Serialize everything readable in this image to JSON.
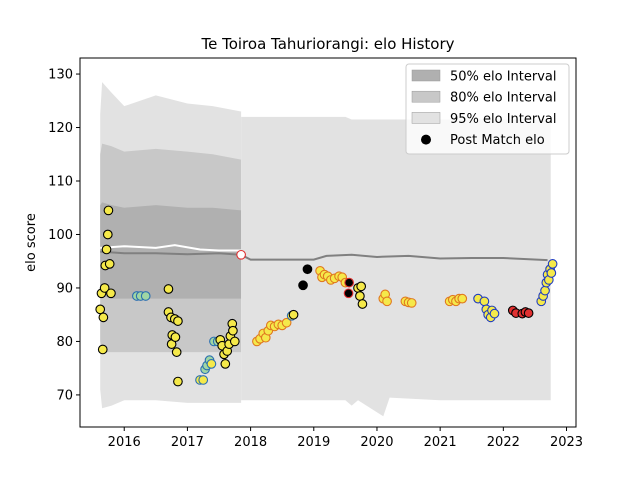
{
  "chart_data": {
    "type": "line",
    "title": "Te Toiroa Tahuriorangi: elo History",
    "ylabel": "elo score",
    "xlabel": "",
    "xlim": [
      2015.3,
      2023.15
    ],
    "ylim": [
      64,
      133
    ],
    "xticks": [
      2016,
      2017,
      2018,
      2019,
      2020,
      2021,
      2022,
      2023
    ],
    "yticks": [
      70,
      80,
      90,
      100,
      110,
      120,
      130
    ],
    "grid": false,
    "legend_position": "top-right",
    "legend": [
      {
        "label": "50% elo Interval",
        "kind": "band",
        "color": "#b0b0b0"
      },
      {
        "label": "80% elo Interval",
        "kind": "band",
        "color": "#c8c8c8"
      },
      {
        "label": "95% elo Interval",
        "kind": "band",
        "color": "#e2e2e2"
      },
      {
        "label": "Post Match elo",
        "kind": "marker",
        "color": "#000000"
      }
    ],
    "colors": {
      "band50": "#b0b0b0",
      "band80": "#c8c8c8",
      "band95": "#e2e2e2",
      "mean_line": "#808080",
      "early_line": "#ffffff"
    },
    "series": [
      {
        "name": "95% elo Interval",
        "kind": "band",
        "x": [
          2015.62,
          2015.65,
          2015.8,
          2016.0,
          2016.5,
          2017.0,
          2017.4,
          2017.85
        ],
        "upper": [
          122.5,
          128.5,
          126.5,
          124,
          126,
          124.5,
          124,
          123
        ],
        "lower": [
          71,
          67.5,
          68,
          69,
          69,
          68.5,
          68.5,
          68.5
        ]
      },
      {
        "name": "80% elo Interval",
        "kind": "band",
        "x": [
          2015.62,
          2015.65,
          2015.8,
          2016.0,
          2016.5,
          2017.0,
          2017.4,
          2017.85
        ],
        "upper": [
          115,
          117,
          116.5,
          115.5,
          116,
          115.5,
          115,
          114
        ],
        "lower": [
          80,
          78,
          78,
          78,
          78,
          78,
          78,
          78
        ]
      },
      {
        "name": "50% elo Interval",
        "kind": "band",
        "x": [
          2015.62,
          2015.65,
          2015.8,
          2016.0,
          2016.5,
          2017.0,
          2017.4,
          2017.85
        ],
        "upper": [
          105.5,
          106,
          105.5,
          105,
          105.5,
          105,
          105,
          104.5
        ],
        "lower": [
          88.5,
          88.5,
          88,
          88,
          88,
          88,
          88,
          88
        ]
      },
      {
        "name": "95% elo Interval",
        "kind": "band",
        "x": [
          2017.85,
          2018.0,
          2019.0,
          2019.5,
          2019.6,
          2019.7,
          2020.1,
          2020.2,
          2021.0,
          2022.0,
          2022.75
        ],
        "upper": [
          122,
          122,
          122,
          122,
          121.5,
          121.5,
          121.5,
          121.5,
          121.5,
          121.5,
          121.5
        ],
        "lower": [
          69,
          69,
          69,
          69,
          68,
          69,
          66,
          69.5,
          69,
          69,
          69
        ]
      },
      {
        "name": "mean",
        "kind": "line",
        "color": "#808080",
        "x": [
          2015.62,
          2016.0,
          2016.5,
          2017.0,
          2017.5,
          2017.85,
          2018.0,
          2018.5,
          2019.0,
          2019.2,
          2019.6,
          2020.0,
          2020.5,
          2021.0,
          2021.5,
          2022.0,
          2022.7
        ],
        "y": [
          96.8,
          96.5,
          96.5,
          96.3,
          96.5,
          96.2,
          95.3,
          95.3,
          95.3,
          96,
          96.2,
          95.8,
          96.0,
          95.5,
          95.6,
          95.6,
          95.2
        ]
      },
      {
        "name": "early mean",
        "kind": "line",
        "color": "#ffffff",
        "x": [
          2015.62,
          2016.0,
          2016.5,
          2016.8,
          2017.2,
          2017.5,
          2017.85
        ],
        "y": [
          97.5,
          97.8,
          97.5,
          98.0,
          97.2,
          97.0,
          97.0
        ]
      }
    ],
    "points": [
      {
        "x": 2015.62,
        "y": 86.0,
        "fill": "#f5e94a",
        "edge": "#000000"
      },
      {
        "x": 2015.64,
        "y": 89.0,
        "fill": "#f5e94a",
        "edge": "#000000"
      },
      {
        "x": 2015.66,
        "y": 78.5,
        "fill": "#f5e94a",
        "edge": "#000000"
      },
      {
        "x": 2015.67,
        "y": 84.5,
        "fill": "#f5e94a",
        "edge": "#000000"
      },
      {
        "x": 2015.69,
        "y": 90.0,
        "fill": "#f5e94a",
        "edge": "#000000"
      },
      {
        "x": 2015.7,
        "y": 94.2,
        "fill": "#f5e94a",
        "edge": "#000000"
      },
      {
        "x": 2015.72,
        "y": 97.2,
        "fill": "#f5e94a",
        "edge": "#000000"
      },
      {
        "x": 2015.74,
        "y": 100.0,
        "fill": "#f5e94a",
        "edge": "#000000"
      },
      {
        "x": 2015.75,
        "y": 104.5,
        "fill": "#f5e94a",
        "edge": "#000000"
      },
      {
        "x": 2015.77,
        "y": 94.5,
        "fill": "#f5e94a",
        "edge": "#000000"
      },
      {
        "x": 2015.79,
        "y": 89.0,
        "fill": "#f5e94a",
        "edge": "#000000"
      },
      {
        "x": 2016.2,
        "y": 88.5,
        "fill": "#a0d6a4",
        "edge": "#2a6fb0"
      },
      {
        "x": 2016.26,
        "y": 88.5,
        "fill": "#a0d6a4",
        "edge": "#2a6fb0"
      },
      {
        "x": 2016.34,
        "y": 88.5,
        "fill": "#a0d6a4",
        "edge": "#2a6fb0"
      },
      {
        "x": 2016.7,
        "y": 89.8,
        "fill": "#f5e94a",
        "edge": "#000000"
      },
      {
        "x": 2016.7,
        "y": 85.5,
        "fill": "#f5e94a",
        "edge": "#000000"
      },
      {
        "x": 2016.74,
        "y": 84.5,
        "fill": "#f5e94a",
        "edge": "#000000"
      },
      {
        "x": 2016.75,
        "y": 79.5,
        "fill": "#f5e94a",
        "edge": "#000000"
      },
      {
        "x": 2016.76,
        "y": 81.2,
        "fill": "#f5e94a",
        "edge": "#000000"
      },
      {
        "x": 2016.8,
        "y": 84.2,
        "fill": "#f5e94a",
        "edge": "#000000"
      },
      {
        "x": 2016.81,
        "y": 80.8,
        "fill": "#f5e94a",
        "edge": "#000000"
      },
      {
        "x": 2016.83,
        "y": 78.0,
        "fill": "#f5e94a",
        "edge": "#000000"
      },
      {
        "x": 2016.85,
        "y": 83.8,
        "fill": "#f5e94a",
        "edge": "#000000"
      },
      {
        "x": 2016.85,
        "y": 72.5,
        "fill": "#f5e94a",
        "edge": "#000000"
      },
      {
        "x": 2017.2,
        "y": 72.8,
        "fill": "#f5e94a",
        "edge": "#2a6fb0"
      },
      {
        "x": 2017.25,
        "y": 72.8,
        "fill": "#f5e94a",
        "edge": "#2a6fb0"
      },
      {
        "x": 2017.28,
        "y": 74.8,
        "fill": "#a0d6a4",
        "edge": "#2a6fb0"
      },
      {
        "x": 2017.31,
        "y": 75.5,
        "fill": "#a0d6a4",
        "edge": "#2a6fb0"
      },
      {
        "x": 2017.35,
        "y": 76.5,
        "fill": "#a0d6a4",
        "edge": "#2a6fb0"
      },
      {
        "x": 2017.38,
        "y": 75.8,
        "fill": "#f5e94a",
        "edge": "#2a6fb0"
      },
      {
        "x": 2017.42,
        "y": 80.0,
        "fill": "#a0d6a4",
        "edge": "#2a6fb0"
      },
      {
        "x": 2017.48,
        "y": 80.0,
        "fill": "#a0d6a4",
        "edge": "#2a6fb0"
      },
      {
        "x": 2017.52,
        "y": 80.3,
        "fill": "#f5e94a",
        "edge": "#000000"
      },
      {
        "x": 2017.55,
        "y": 79.2,
        "fill": "#f5e94a",
        "edge": "#000000"
      },
      {
        "x": 2017.58,
        "y": 77.6,
        "fill": "#f5e94a",
        "edge": "#000000"
      },
      {
        "x": 2017.6,
        "y": 75.8,
        "fill": "#f5e94a",
        "edge": "#000000"
      },
      {
        "x": 2017.63,
        "y": 78.2,
        "fill": "#f5e94a",
        "edge": "#000000"
      },
      {
        "x": 2017.66,
        "y": 79.5,
        "fill": "#f5e94a",
        "edge": "#000000"
      },
      {
        "x": 2017.68,
        "y": 81.0,
        "fill": "#f5e94a",
        "edge": "#000000"
      },
      {
        "x": 2017.71,
        "y": 83.3,
        "fill": "#f5e94a",
        "edge": "#000000"
      },
      {
        "x": 2017.72,
        "y": 82.0,
        "fill": "#f5e94a",
        "edge": "#000000"
      },
      {
        "x": 2017.75,
        "y": 80.0,
        "fill": "#f5e94a",
        "edge": "#000000"
      },
      {
        "x": 2017.85,
        "y": 96.2,
        "fill": "#ffffff",
        "edge": "#e03030"
      },
      {
        "x": 2018.1,
        "y": 80.0,
        "fill": "#f5e94a",
        "edge": "#e07820"
      },
      {
        "x": 2018.15,
        "y": 80.5,
        "fill": "#f5e94a",
        "edge": "#e07820"
      },
      {
        "x": 2018.2,
        "y": 81.5,
        "fill": "#f5e94a",
        "edge": "#e07820"
      },
      {
        "x": 2018.24,
        "y": 80.7,
        "fill": "#f5e94a",
        "edge": "#e07820"
      },
      {
        "x": 2018.28,
        "y": 82.0,
        "fill": "#f5e94a",
        "edge": "#e07820"
      },
      {
        "x": 2018.32,
        "y": 83.0,
        "fill": "#f5e94a",
        "edge": "#e07820"
      },
      {
        "x": 2018.38,
        "y": 82.8,
        "fill": "#f5e94a",
        "edge": "#e07820"
      },
      {
        "x": 2018.44,
        "y": 83.2,
        "fill": "#f5e94a",
        "edge": "#e07820"
      },
      {
        "x": 2018.5,
        "y": 83.0,
        "fill": "#f5e94a",
        "edge": "#e07820"
      },
      {
        "x": 2018.57,
        "y": 83.5,
        "fill": "#f5e94a",
        "edge": "#e07820"
      },
      {
        "x": 2018.65,
        "y": 84.8,
        "fill": "#f5e94a",
        "edge": "#2a6fb0"
      },
      {
        "x": 2018.68,
        "y": 85.0,
        "fill": "#f5e94a",
        "edge": "#000000"
      },
      {
        "x": 2018.83,
        "y": 90.5,
        "fill": "#000000",
        "edge": "#000000"
      },
      {
        "x": 2018.9,
        "y": 93.5,
        "fill": "#000000",
        "edge": "#000000"
      },
      {
        "x": 2019.1,
        "y": 93.2,
        "fill": "#f5e94a",
        "edge": "#e07820"
      },
      {
        "x": 2019.13,
        "y": 92.0,
        "fill": "#f5e94a",
        "edge": "#e07820"
      },
      {
        "x": 2019.17,
        "y": 92.5,
        "fill": "#f5e94a",
        "edge": "#e07820"
      },
      {
        "x": 2019.22,
        "y": 92.2,
        "fill": "#f5e94a",
        "edge": "#e07820"
      },
      {
        "x": 2019.27,
        "y": 91.5,
        "fill": "#f5e94a",
        "edge": "#e07820"
      },
      {
        "x": 2019.33,
        "y": 91.8,
        "fill": "#f5e94a",
        "edge": "#e07820"
      },
      {
        "x": 2019.4,
        "y": 92.2,
        "fill": "#f5e94a",
        "edge": "#e07820"
      },
      {
        "x": 2019.45,
        "y": 92.0,
        "fill": "#f5e94a",
        "edge": "#e07820"
      },
      {
        "x": 2019.5,
        "y": 91.0,
        "fill": "#f5e94a",
        "edge": "#e07820"
      },
      {
        "x": 2019.55,
        "y": 89.0,
        "fill": "#000000",
        "edge": "#e03030"
      },
      {
        "x": 2019.56,
        "y": 91.0,
        "fill": "#000000",
        "edge": "#e03030"
      },
      {
        "x": 2019.7,
        "y": 90.0,
        "fill": "#f5e94a",
        "edge": "#000000"
      },
      {
        "x": 2019.73,
        "y": 88.5,
        "fill": "#f5e94a",
        "edge": "#000000"
      },
      {
        "x": 2019.75,
        "y": 90.3,
        "fill": "#f5e94a",
        "edge": "#000000"
      },
      {
        "x": 2019.77,
        "y": 87.0,
        "fill": "#f5e94a",
        "edge": "#000000"
      },
      {
        "x": 2020.1,
        "y": 88.0,
        "fill": "#f5e94a",
        "edge": "#e07820"
      },
      {
        "x": 2020.13,
        "y": 88.8,
        "fill": "#f5e94a",
        "edge": "#e07820"
      },
      {
        "x": 2020.16,
        "y": 87.5,
        "fill": "#f5e94a",
        "edge": "#e07820"
      },
      {
        "x": 2020.45,
        "y": 87.5,
        "fill": "#f5e94a",
        "edge": "#e07820"
      },
      {
        "x": 2020.5,
        "y": 87.3,
        "fill": "#f5e94a",
        "edge": "#e07820"
      },
      {
        "x": 2020.55,
        "y": 87.2,
        "fill": "#f5e94a",
        "edge": "#e07820"
      },
      {
        "x": 2021.15,
        "y": 87.5,
        "fill": "#f5e94a",
        "edge": "#e07820"
      },
      {
        "x": 2021.2,
        "y": 87.8,
        "fill": "#f5e94a",
        "edge": "#e07820"
      },
      {
        "x": 2021.25,
        "y": 87.5,
        "fill": "#f5e94a",
        "edge": "#e07820"
      },
      {
        "x": 2021.3,
        "y": 88.0,
        "fill": "#f5e94a",
        "edge": "#e07820"
      },
      {
        "x": 2021.35,
        "y": 88.0,
        "fill": "#f5e94a",
        "edge": "#e07820"
      },
      {
        "x": 2021.6,
        "y": 88.0,
        "fill": "#f5e94a",
        "edge": "#1f3cc0"
      },
      {
        "x": 2021.7,
        "y": 87.5,
        "fill": "#f5e94a",
        "edge": "#1f3cc0"
      },
      {
        "x": 2021.73,
        "y": 86.0,
        "fill": "#f5e94a",
        "edge": "#1f3cc0"
      },
      {
        "x": 2021.76,
        "y": 85.0,
        "fill": "#f5e94a",
        "edge": "#1f3cc0"
      },
      {
        "x": 2021.8,
        "y": 84.5,
        "fill": "#f5e94a",
        "edge": "#1f3cc0"
      },
      {
        "x": 2021.82,
        "y": 85.8,
        "fill": "#f5e94a",
        "edge": "#1f3cc0"
      },
      {
        "x": 2021.86,
        "y": 85.2,
        "fill": "#f5e94a",
        "edge": "#1f3cc0"
      },
      {
        "x": 2022.15,
        "y": 85.8,
        "fill": "#e03030",
        "edge": "#000000"
      },
      {
        "x": 2022.2,
        "y": 85.3,
        "fill": "#e03030",
        "edge": "#000000"
      },
      {
        "x": 2022.3,
        "y": 85.2,
        "fill": "#e03030",
        "edge": "#000000"
      },
      {
        "x": 2022.35,
        "y": 85.5,
        "fill": "#e03030",
        "edge": "#000000"
      },
      {
        "x": 2022.4,
        "y": 85.3,
        "fill": "#e03030",
        "edge": "#000000"
      },
      {
        "x": 2022.6,
        "y": 87.5,
        "fill": "#f5e94a",
        "edge": "#1f3cc0"
      },
      {
        "x": 2022.63,
        "y": 88.5,
        "fill": "#f5e94a",
        "edge": "#1f3cc0"
      },
      {
        "x": 2022.66,
        "y": 89.5,
        "fill": "#f5e94a",
        "edge": "#1f3cc0"
      },
      {
        "x": 2022.68,
        "y": 91.0,
        "fill": "#f5e94a",
        "edge": "#1f3cc0"
      },
      {
        "x": 2022.7,
        "y": 92.5,
        "fill": "#f5e94a",
        "edge": "#1f3cc0"
      },
      {
        "x": 2022.72,
        "y": 91.5,
        "fill": "#f5e94a",
        "edge": "#1f3cc0"
      },
      {
        "x": 2022.74,
        "y": 93.5,
        "fill": "#f5e94a",
        "edge": "#1f3cc0"
      },
      {
        "x": 2022.76,
        "y": 92.8,
        "fill": "#f5e94a",
        "edge": "#1f3cc0"
      },
      {
        "x": 2022.78,
        "y": 94.5,
        "fill": "#f5e94a",
        "edge": "#1f3cc0"
      }
    ]
  }
}
